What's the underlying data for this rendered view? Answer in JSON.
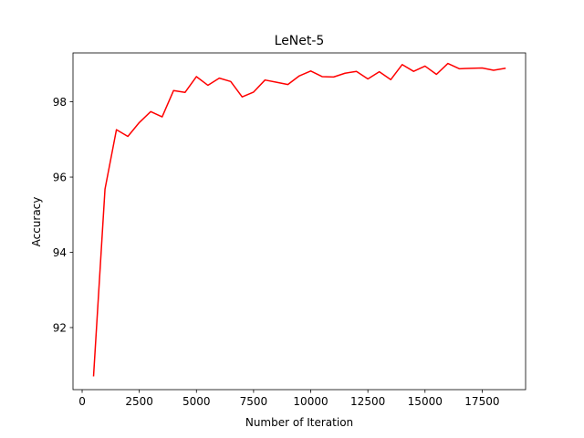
{
  "chart_data": {
    "type": "line",
    "title": "LeNet-5",
    "xlabel": "Number of Iteration",
    "ylabel": "Accuracy",
    "xlim": [
      -400,
      19400
    ],
    "ylim": [
      90.35,
      99.3
    ],
    "xticks": [
      0,
      2500,
      5000,
      7500,
      10000,
      12500,
      15000,
      17500
    ],
    "xtick_labels": [
      "0",
      "2500",
      "5000",
      "7500",
      "10000",
      "12500",
      "15000",
      "17500"
    ],
    "yticks": [
      92,
      94,
      96,
      98
    ],
    "ytick_labels": [
      "92",
      "94",
      "96",
      "98"
    ],
    "grid": false,
    "legend": "none",
    "series": [
      {
        "color": "#ff0000",
        "x": [
          500,
          1000,
          1500,
          2000,
          2500,
          3000,
          3500,
          4000,
          4500,
          5000,
          5500,
          6000,
          6500,
          7000,
          7500,
          8000,
          8500,
          9000,
          9500,
          10000,
          10500,
          11000,
          11500,
          12000,
          12500,
          13000,
          13500,
          14000,
          14500,
          15000,
          15500,
          16000,
          16500,
          17000,
          17500,
          18000,
          18500
        ],
        "y": [
          90.72,
          95.68,
          97.26,
          97.08,
          97.45,
          97.74,
          97.6,
          98.3,
          98.25,
          98.67,
          98.44,
          98.63,
          98.54,
          98.13,
          98.26,
          98.58,
          98.52,
          98.46,
          98.69,
          98.82,
          98.67,
          98.66,
          98.76,
          98.81,
          98.61,
          98.8,
          98.59,
          98.99,
          98.81,
          98.95,
          98.73,
          99.02,
          98.88,
          98.89,
          98.9,
          98.84,
          98.89
        ]
      }
    ]
  }
}
